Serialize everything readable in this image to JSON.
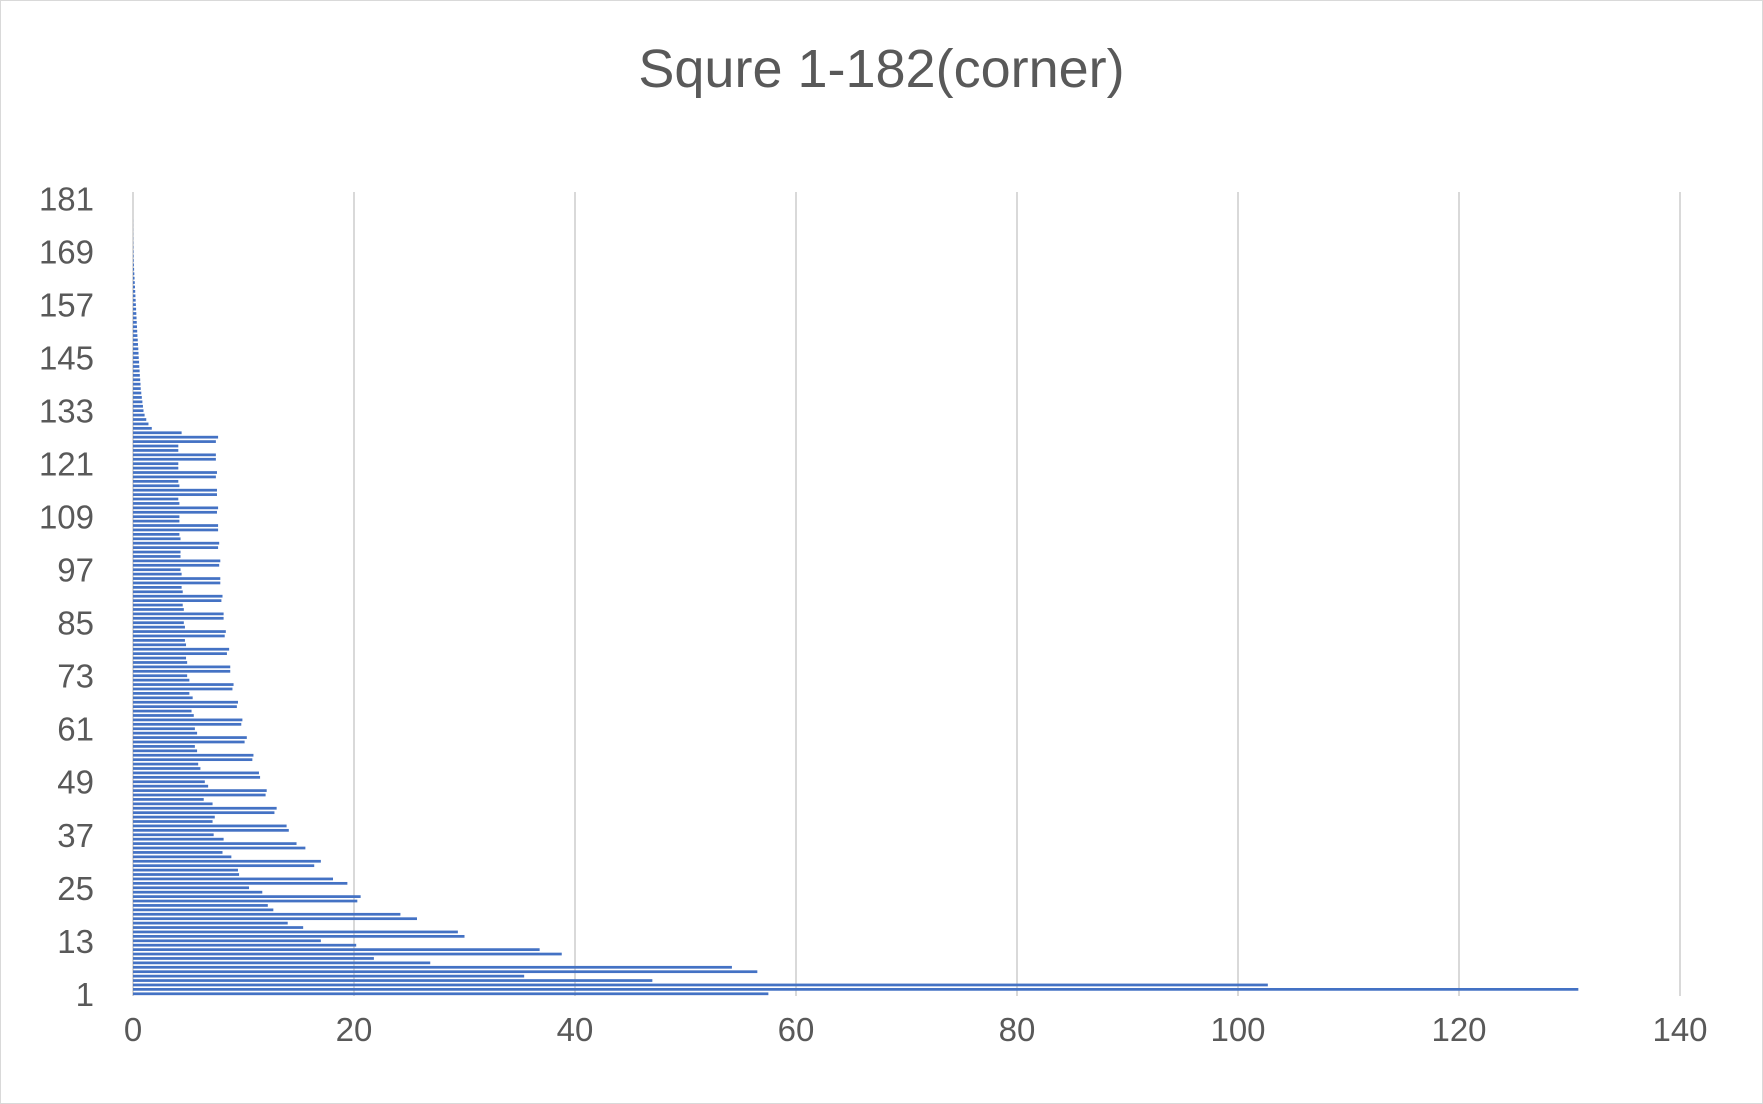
{
  "chart_data": {
    "type": "bar",
    "orientation": "horizontal",
    "title": "Squre 1-182(corner)",
    "xlabel": "",
    "ylabel": "",
    "xlim": [
      0,
      140
    ],
    "x_ticks": [
      "0",
      "20",
      "40",
      "60",
      "80",
      "100",
      "120",
      "140"
    ],
    "y_tick_labels": [
      "1",
      "13",
      "25",
      "37",
      "49",
      "61",
      "73",
      "85",
      "97",
      "109",
      "121",
      "133",
      "145",
      "157",
      "169",
      "181"
    ],
    "grid": "vertical major gridlines",
    "legend": "none",
    "bar_color": "#4472c4",
    "grid_color": "#d9d9d9",
    "categories_count": 182,
    "values": [
      57.5,
      130.8,
      102.7,
      47,
      35.4,
      56.5,
      54.2,
      26.9,
      21.8,
      38.8,
      36.8,
      20.2,
      17,
      30,
      29.4,
      15.4,
      14,
      25.7,
      24.2,
      12.7,
      12.2,
      20.3,
      20.6,
      11.7,
      10.5,
      19.4,
      18.1,
      9.6,
      9.5,
      16.4,
      17,
      8.9,
      8.1,
      15.6,
      14.8,
      8.2,
      7.3,
      14.1,
      13.9,
      7.2,
      7.4,
      12.8,
      13,
      7.2,
      6.4,
      12,
      12.1,
      6.8,
      6.5,
      11.5,
      11.4,
      6.1,
      5.9,
      10.8,
      10.9,
      5.8,
      5.6,
      10.1,
      10.3,
      5.8,
      5.6,
      9.8,
      9.9,
      5.5,
      5.3,
      9.4,
      9.5,
      5.4,
      5.1,
      9,
      9.1,
      5.1,
      4.9,
      8.8,
      8.8,
      4.9,
      4.8,
      8.5,
      8.7,
      4.8,
      4.7,
      8.3,
      8.4,
      4.7,
      4.6,
      8.2,
      8.2,
      4.6,
      4.5,
      8,
      8.1,
      4.5,
      4.4,
      7.9,
      7.9,
      4.4,
      4.3,
      7.8,
      7.9,
      4.3,
      4.3,
      7.7,
      7.8,
      4.3,
      4.2,
      7.7,
      7.7,
      4.2,
      4.2,
      7.6,
      7.7,
      4.2,
      4.1,
      7.6,
      7.6,
      4.2,
      4.1,
      7.5,
      7.6,
      4.1,
      4.1,
      7.5,
      7.5,
      4.1,
      4.1,
      7.5,
      7.7,
      4.4,
      1.7,
      1.4,
      1.2,
      1.05,
      0.95,
      0.9,
      0.85,
      0.8,
      0.75,
      0.7,
      0.68,
      0.65,
      0.62,
      0.6,
      0.57,
      0.55,
      0.52,
      0.5,
      0.48,
      0.45,
      0.43,
      0.4,
      0.38,
      0.36,
      0.34,
      0.32,
      0.3,
      0.28,
      0.26,
      0.24,
      0.22,
      0.2,
      0.18,
      0.16,
      0.14,
      0.12,
      0.1,
      0.08,
      0.06,
      0.05,
      0.04,
      0.03,
      0.02,
      0.015,
      0.01,
      0.008,
      0.006,
      0.005,
      0,
      0,
      0,
      0,
      0,
      0,
      0,
      0,
      0
    ]
  }
}
